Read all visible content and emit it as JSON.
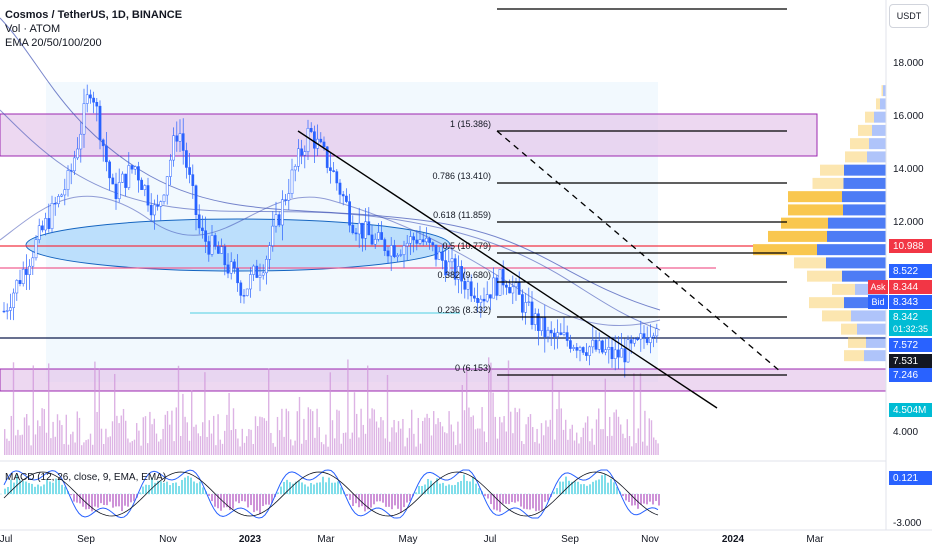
{
  "header": {
    "title": "Cosmos / TetherUS, 1D, BINANCE",
    "volume_label": "Vol · ATOM",
    "ema_label": "EMA 20/50/100/200",
    "currency_button": "USDT"
  },
  "macd": {
    "label": "MACD (12, 26, close, 9, EMA, EMA)",
    "value_badge": "0.121"
  },
  "colors": {
    "background": "#ffffff",
    "candle": "#2962ff",
    "volume": "#ce93d8",
    "fib_line": "#000000",
    "zone_fill": "#e1bee7",
    "zone_stroke": "#9c27b0",
    "ellipse_fill": "#90caf9",
    "ellipse_stroke": "#1565c0",
    "vp_up": "#f9c74f",
    "vp_down": "#4d7cf5",
    "red_line": "#f23645",
    "teal_badge": "#00bcd4",
    "macd_hist": "#80deea",
    "macd_hist_neg": "#ce93d8"
  },
  "chart_data": {
    "type": "candlestick",
    "symbol": "Cosmos / TetherUS",
    "timeframe": "1D",
    "exchange": "BINANCE",
    "x_axis_ticks": [
      "Jul",
      "Sep",
      "Nov",
      "2023",
      "Mar",
      "May",
      "Jul",
      "Sep",
      "Nov",
      "2024",
      "Mar"
    ],
    "y_axis_ticks": [
      18,
      16,
      14,
      12
    ],
    "volume_axis_tick": "4.000",
    "macd_axis_tick": "-3.000",
    "price_path": [
      {
        "t": 0,
        "p": 8.6
      },
      {
        "t": 1.5,
        "p": 11.2
      },
      {
        "t": 3,
        "p": 13.6
      },
      {
        "t": 4,
        "p": 17.2
      },
      {
        "t": 5,
        "p": 13.0
      },
      {
        "t": 6,
        "p": 14.1
      },
      {
        "t": 7,
        "p": 12.2
      },
      {
        "t": 8,
        "p": 15.6
      },
      {
        "t": 9,
        "p": 11.5
      },
      {
        "t": 10,
        "p": 10.6
      },
      {
        "t": 11,
        "p": 9.4
      },
      {
        "t": 12,
        "p": 10.6
      },
      {
        "t": 13,
        "p": 13.2
      },
      {
        "t": 14,
        "p": 15.4
      },
      {
        "t": 15,
        "p": 14.0
      },
      {
        "t": 16,
        "p": 12.0
      },
      {
        "t": 17,
        "p": 11.2
      },
      {
        "t": 18,
        "p": 11.0
      },
      {
        "t": 19,
        "p": 11.4
      },
      {
        "t": 20,
        "p": 10.6
      },
      {
        "t": 21,
        "p": 9.8
      },
      {
        "t": 22,
        "p": 9.2
      },
      {
        "t": 23,
        "p": 9.9
      },
      {
        "t": 24,
        "p": 8.6
      },
      {
        "t": 25,
        "p": 7.6
      },
      {
        "t": 26,
        "p": 7.5
      },
      {
        "t": 27,
        "p": 7.2
      },
      {
        "t": 28,
        "p": 6.9
      },
      {
        "t": 29,
        "p": 7.2
      },
      {
        "t": 30,
        "p": 8.34
      }
    ],
    "fib_levels": [
      {
        "label": "1 (15.386)",
        "value": 15.386
      },
      {
        "label": "0.786 (13.410)",
        "value": 13.41
      },
      {
        "label": "0.618 (11.859)",
        "value": 11.859
      },
      {
        "label": "0.5 (10.779)",
        "value": 10.779
      },
      {
        "label": "0.382 (9.680)",
        "value": 9.68
      },
      {
        "label": "0.236 (8.332)",
        "value": 8.332
      },
      {
        "label": "0 (6.153)",
        "value": 6.153
      }
    ],
    "price_badges": [
      {
        "label": "10.988",
        "value": 10.988,
        "color": "#f23645"
      },
      {
        "label": "8.522",
        "value": 8.522,
        "color": "#2962ff"
      },
      {
        "label": "Ask",
        "value": 8.344,
        "color": "#f23645",
        "text": "8.344"
      },
      {
        "label": "Bid",
        "value": 8.343,
        "color": "#2962ff",
        "text": "8.343"
      },
      {
        "label": "8.342",
        "value": 8.342,
        "color": "#00bcd4",
        "countdown": "01:32:35"
      },
      {
        "label": "7.572",
        "value": 7.572,
        "color": "#2962ff"
      },
      {
        "label": "7.531",
        "value": 7.531,
        "color": "#131722"
      },
      {
        "label": "7.246",
        "value": 7.246,
        "color": "#2962ff"
      }
    ],
    "volume_badge": "4.504M",
    "volume_profile": [
      {
        "price": 16.9,
        "up": 3,
        "down": 6
      },
      {
        "price": 16.4,
        "up": 8,
        "down": 12
      },
      {
        "price": 15.9,
        "up": 18,
        "down": 24
      },
      {
        "price": 15.4,
        "up": 28,
        "down": 28
      },
      {
        "price": 14.9,
        "up": 38,
        "down": 34
      },
      {
        "price": 14.4,
        "up": 44,
        "down": 38
      },
      {
        "price": 13.9,
        "up": 48,
        "down": 84
      },
      {
        "price": 13.4,
        "up": 62,
        "down": 85
      },
      {
        "price": 12.9,
        "up": 108,
        "down": 88
      },
      {
        "price": 12.4,
        "up": 110,
        "down": 86
      },
      {
        "price": 11.9,
        "up": 94,
        "down": 116
      },
      {
        "price": 11.4,
        "up": 118,
        "down": 118
      },
      {
        "price": 10.9,
        "up": 128,
        "down": 138
      },
      {
        "price": 10.4,
        "up": 64,
        "down": 120
      },
      {
        "price": 9.9,
        "up": 70,
        "down": 88
      },
      {
        "price": 9.4,
        "up": 46,
        "down": 62
      },
      {
        "price": 8.9,
        "up": 70,
        "down": 84
      },
      {
        "price": 8.4,
        "up": 58,
        "down": 70
      },
      {
        "price": 7.9,
        "up": 32,
        "down": 58
      },
      {
        "price": 7.4,
        "up": 36,
        "down": 40
      },
      {
        "price": 6.9,
        "up": 40,
        "down": 44
      }
    ]
  }
}
